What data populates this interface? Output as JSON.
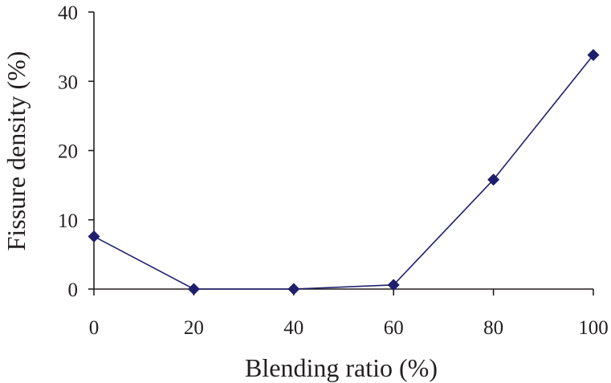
{
  "chart_data": {
    "type": "line",
    "title": "",
    "xlabel": "Blending ratio (%)",
    "ylabel": "Fissure density (%)",
    "x": [
      0,
      20,
      40,
      60,
      80,
      100
    ],
    "series": [
      {
        "name": "Fissure density",
        "values": [
          7.6,
          0.0,
          0.0,
          0.6,
          15.8,
          33.8
        ]
      }
    ],
    "xlim": [
      0,
      100
    ],
    "ylim": [
      0,
      40
    ],
    "xticks": [
      0,
      20,
      40,
      60,
      80,
      100
    ],
    "yticks": [
      0,
      10,
      20,
      30,
      40
    ],
    "xtick_labels": [
      "0",
      "20",
      "40",
      "60",
      "80",
      "100"
    ],
    "ytick_labels": [
      "0",
      "10",
      "20",
      "30",
      "40"
    ],
    "grid": false,
    "legend": "none",
    "marker": "diamond",
    "color": "#1f1f6e"
  }
}
